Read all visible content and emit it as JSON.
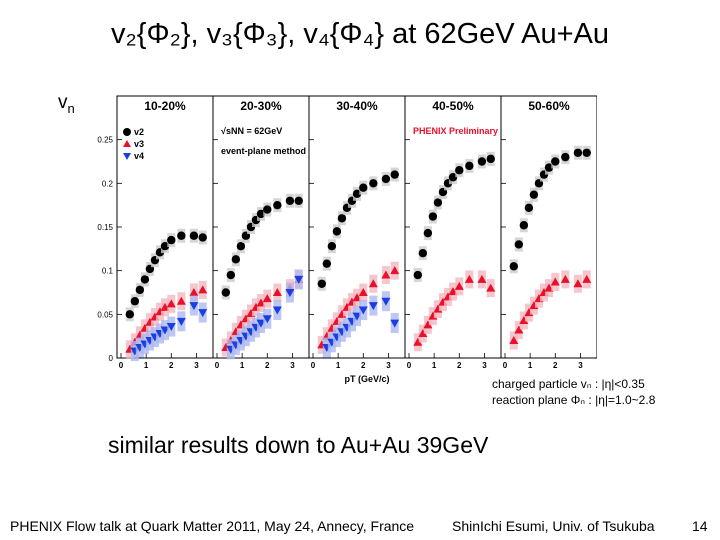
{
  "slide": {
    "title": "v₂{Φ₂}, v₃{Φ₃}, v₄{Φ₄} at 62GeV Au+Au",
    "ylabel_main": "v",
    "ylabel_sub": "n",
    "note_line1": "charged particle vₙ : |η|<0.35",
    "note_line2": "reaction plane Φₙ : |η|=1.0~2.8",
    "similar": "similar results down to Au+Au 39GeV",
    "footer_left": "PHENIX Flow talk at Quark Matter 2011, May 24, Annecy, France",
    "footer_author": "ShinIchi Esumi, Univ. of Tsukuba",
    "page_number": "14"
  },
  "chart_data": {
    "type": "scatter",
    "xlabel": "pT (GeV/c)",
    "ylabel": "vn",
    "xlim": [
      0,
      3.5
    ],
    "ylim": [
      0,
      0.3
    ],
    "yticks": [
      "0",
      "0.05",
      "0.1",
      "0.15",
      "0.2",
      "0.25"
    ],
    "xticks": [
      "0",
      "1",
      "2",
      "3"
    ],
    "energy_label": "√sNN = 62GeV",
    "method_label": "event-plane method",
    "preliminary_label": "PHENIX Preliminary",
    "colors": {
      "v2": "#000000",
      "v3": "#e8102a",
      "v4": "#1a3fe0",
      "v3_band": "#f4b8c0",
      "v4_band": "#aeb8f0",
      "v2_band": "#cccccc"
    },
    "legend": [
      "v2",
      "v3",
      "v4"
    ],
    "panels": [
      {
        "label": "10-20%",
        "series": [
          {
            "name": "v2",
            "x": [
              0.35,
              0.55,
              0.75,
              0.95,
              1.15,
              1.35,
              1.55,
              1.75,
              2.0,
              2.4,
              2.9,
              3.25
            ],
            "y": [
              0.05,
              0.065,
              0.078,
              0.09,
              0.102,
              0.112,
              0.121,
              0.128,
              0.135,
              0.14,
              0.14,
              0.138
            ]
          },
          {
            "name": "v3",
            "x": [
              0.35,
              0.55,
              0.75,
              0.95,
              1.15,
              1.35,
              1.55,
              1.75,
              2.0,
              2.4,
              2.9,
              3.25
            ],
            "y": [
              0.01,
              0.018,
              0.026,
              0.034,
              0.041,
              0.047,
              0.053,
              0.058,
              0.062,
              0.065,
              0.075,
              0.078
            ]
          },
          {
            "name": "v4",
            "x": [
              0.55,
              0.75,
              0.95,
              1.15,
              1.35,
              1.55,
              1.75,
              2.0,
              2.4,
              2.9,
              3.25
            ],
            "y": [
              0.008,
              0.012,
              0.016,
              0.02,
              0.024,
              0.028,
              0.032,
              0.036,
              0.042,
              0.06,
              0.052
            ]
          }
        ]
      },
      {
        "label": "20-30%",
        "series": [
          {
            "name": "v2",
            "x": [
              0.35,
              0.55,
              0.75,
              0.95,
              1.15,
              1.35,
              1.55,
              1.75,
              2.0,
              2.4,
              2.9,
              3.25
            ],
            "y": [
              0.075,
              0.095,
              0.113,
              0.128,
              0.14,
              0.15,
              0.158,
              0.165,
              0.17,
              0.175,
              0.18,
              0.18
            ]
          },
          {
            "name": "v3",
            "x": [
              0.35,
              0.55,
              0.75,
              0.95,
              1.15,
              1.35,
              1.55,
              1.75,
              2.0,
              2.4,
              2.9,
              3.25
            ],
            "y": [
              0.012,
              0.02,
              0.03,
              0.038,
              0.045,
              0.051,
              0.058,
              0.063,
              0.068,
              0.075,
              0.08,
              0.09
            ]
          },
          {
            "name": "v4",
            "x": [
              0.55,
              0.75,
              0.95,
              1.15,
              1.35,
              1.55,
              1.75,
              2.0,
              2.4,
              2.9,
              3.25
            ],
            "y": [
              0.01,
              0.015,
              0.02,
              0.025,
              0.03,
              0.035,
              0.04,
              0.045,
              0.055,
              0.075,
              0.09
            ]
          }
        ]
      },
      {
        "label": "30-40%",
        "series": [
          {
            "name": "v2",
            "x": [
              0.35,
              0.55,
              0.75,
              0.95,
              1.15,
              1.35,
              1.55,
              1.75,
              2.0,
              2.4,
              2.9,
              3.25
            ],
            "y": [
              0.085,
              0.108,
              0.128,
              0.145,
              0.16,
              0.172,
              0.18,
              0.188,
              0.195,
              0.2,
              0.205,
              0.21
            ]
          },
          {
            "name": "v3",
            "x": [
              0.35,
              0.55,
              0.75,
              0.95,
              1.15,
              1.35,
              1.55,
              1.75,
              2.0,
              2.4,
              2.9,
              3.25
            ],
            "y": [
              0.015,
              0.025,
              0.034,
              0.042,
              0.05,
              0.058,
              0.064,
              0.069,
              0.075,
              0.085,
              0.095,
              0.1
            ]
          },
          {
            "name": "v4",
            "x": [
              0.55,
              0.75,
              0.95,
              1.15,
              1.35,
              1.55,
              1.75,
              2.0,
              2.4,
              2.9,
              3.25
            ],
            "y": [
              0.012,
              0.018,
              0.024,
              0.03,
              0.035,
              0.042,
              0.048,
              0.055,
              0.06,
              0.065,
              0.04
            ]
          }
        ]
      },
      {
        "label": "40-50%",
        "series": [
          {
            "name": "v2",
            "x": [
              0.35,
              0.55,
              0.75,
              0.95,
              1.15,
              1.35,
              1.55,
              1.75,
              2.0,
              2.4,
              2.9,
              3.25
            ],
            "y": [
              0.095,
              0.12,
              0.143,
              0.162,
              0.178,
              0.19,
              0.2,
              0.207,
              0.215,
              0.22,
              0.225,
              0.228
            ]
          },
          {
            "name": "v3",
            "x": [
              0.35,
              0.55,
              0.75,
              0.95,
              1.15,
              1.35,
              1.55,
              1.75,
              2.0,
              2.4,
              2.9,
              3.25
            ],
            "y": [
              0.018,
              0.028,
              0.038,
              0.048,
              0.056,
              0.064,
              0.07,
              0.076,
              0.082,
              0.09,
              0.09,
              0.08
            ]
          }
        ]
      },
      {
        "label": "50-60%",
        "series": [
          {
            "name": "v2",
            "x": [
              0.35,
              0.55,
              0.75,
              0.95,
              1.15,
              1.35,
              1.55,
              1.75,
              2.0,
              2.4,
              2.9,
              3.25
            ],
            "y": [
              0.105,
              0.13,
              0.152,
              0.172,
              0.187,
              0.2,
              0.21,
              0.218,
              0.225,
              0.23,
              0.235,
              0.235
            ]
          },
          {
            "name": "v3",
            "x": [
              0.35,
              0.55,
              0.75,
              0.95,
              1.15,
              1.35,
              1.55,
              1.75,
              2.0,
              2.4,
              2.9,
              3.25
            ],
            "y": [
              0.02,
              0.032,
              0.043,
              0.052,
              0.06,
              0.068,
              0.075,
              0.08,
              0.087,
              0.09,
              0.085,
              0.09
            ]
          }
        ]
      }
    ]
  }
}
